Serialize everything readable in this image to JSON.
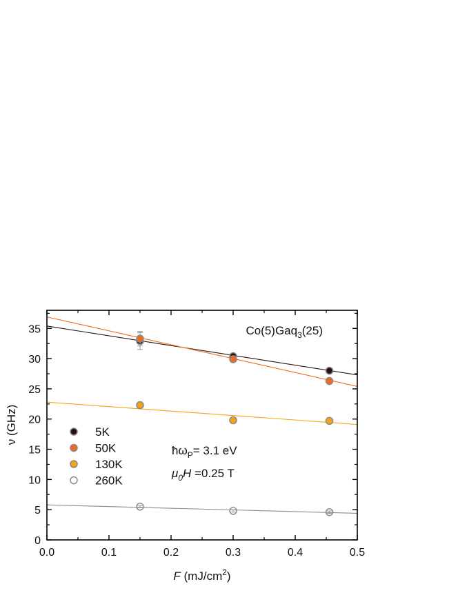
{
  "chart_data": {
    "type": "scatter",
    "title": "",
    "annotation_sample": [
      "Co(5)Gaq",
      "3",
      "(25)"
    ],
    "annotation_photon": [
      "ħω",
      "P",
      "= 3.1 eV"
    ],
    "annotation_field": [
      "μ",
      "0",
      "H",
      " =0.25 T"
    ],
    "xlabel_var": "F",
    "xlabel_unit": " (mJ/cm",
    "xlabel_sup": "2",
    "xlabel_close": ")",
    "ylabel": "ν (GHz)",
    "xlim": [
      0,
      0.5
    ],
    "ylim": [
      0,
      38
    ],
    "xticks": [
      0.0,
      0.1,
      0.2,
      0.3,
      0.4,
      0.5
    ],
    "xtick_labels": [
      "0.0",
      "0.1",
      "0.2",
      "0.3",
      "0.4",
      "0.5"
    ],
    "yticks": [
      0,
      5,
      10,
      15,
      20,
      25,
      30,
      35
    ],
    "ytick_labels": [
      "0",
      "5",
      "10",
      "15",
      "20",
      "25",
      "30",
      "35"
    ],
    "grid": false,
    "legend_position": "left",
    "series": [
      {
        "name": "5K",
        "color": "#2a0f10",
        "filled": true,
        "x": [
          0.15,
          0.3,
          0.455
        ],
        "y": [
          32.9,
          30.4,
          28.0
        ],
        "yerr": [
          1.4,
          0.4,
          0.3
        ],
        "fit": [
          35.4,
          27.3
        ]
      },
      {
        "name": "50K",
        "color": "#f06a20",
        "filled": true,
        "x": [
          0.15,
          0.3,
          0.455
        ],
        "y": [
          33.3,
          29.9,
          26.3
        ],
        "yerr": [
          1.2,
          0.4,
          0.3
        ],
        "fit": [
          36.9,
          25.4
        ]
      },
      {
        "name": "130K",
        "color": "#f5a417",
        "filled": true,
        "x": [
          0.15,
          0.3,
          0.455
        ],
        "y": [
          22.3,
          19.8,
          19.7
        ],
        "yerr": [
          0.4,
          0.3,
          0.3
        ],
        "fit": [
          22.8,
          19.1
        ]
      },
      {
        "name": "260K",
        "color": "#8c8c8c",
        "filled": false,
        "x": [
          0.15,
          0.3,
          0.455
        ],
        "y": [
          5.5,
          4.8,
          4.6
        ],
        "yerr": [
          0.2,
          0.2,
          0.2
        ],
        "fit": [
          5.8,
          4.4
        ]
      }
    ]
  }
}
